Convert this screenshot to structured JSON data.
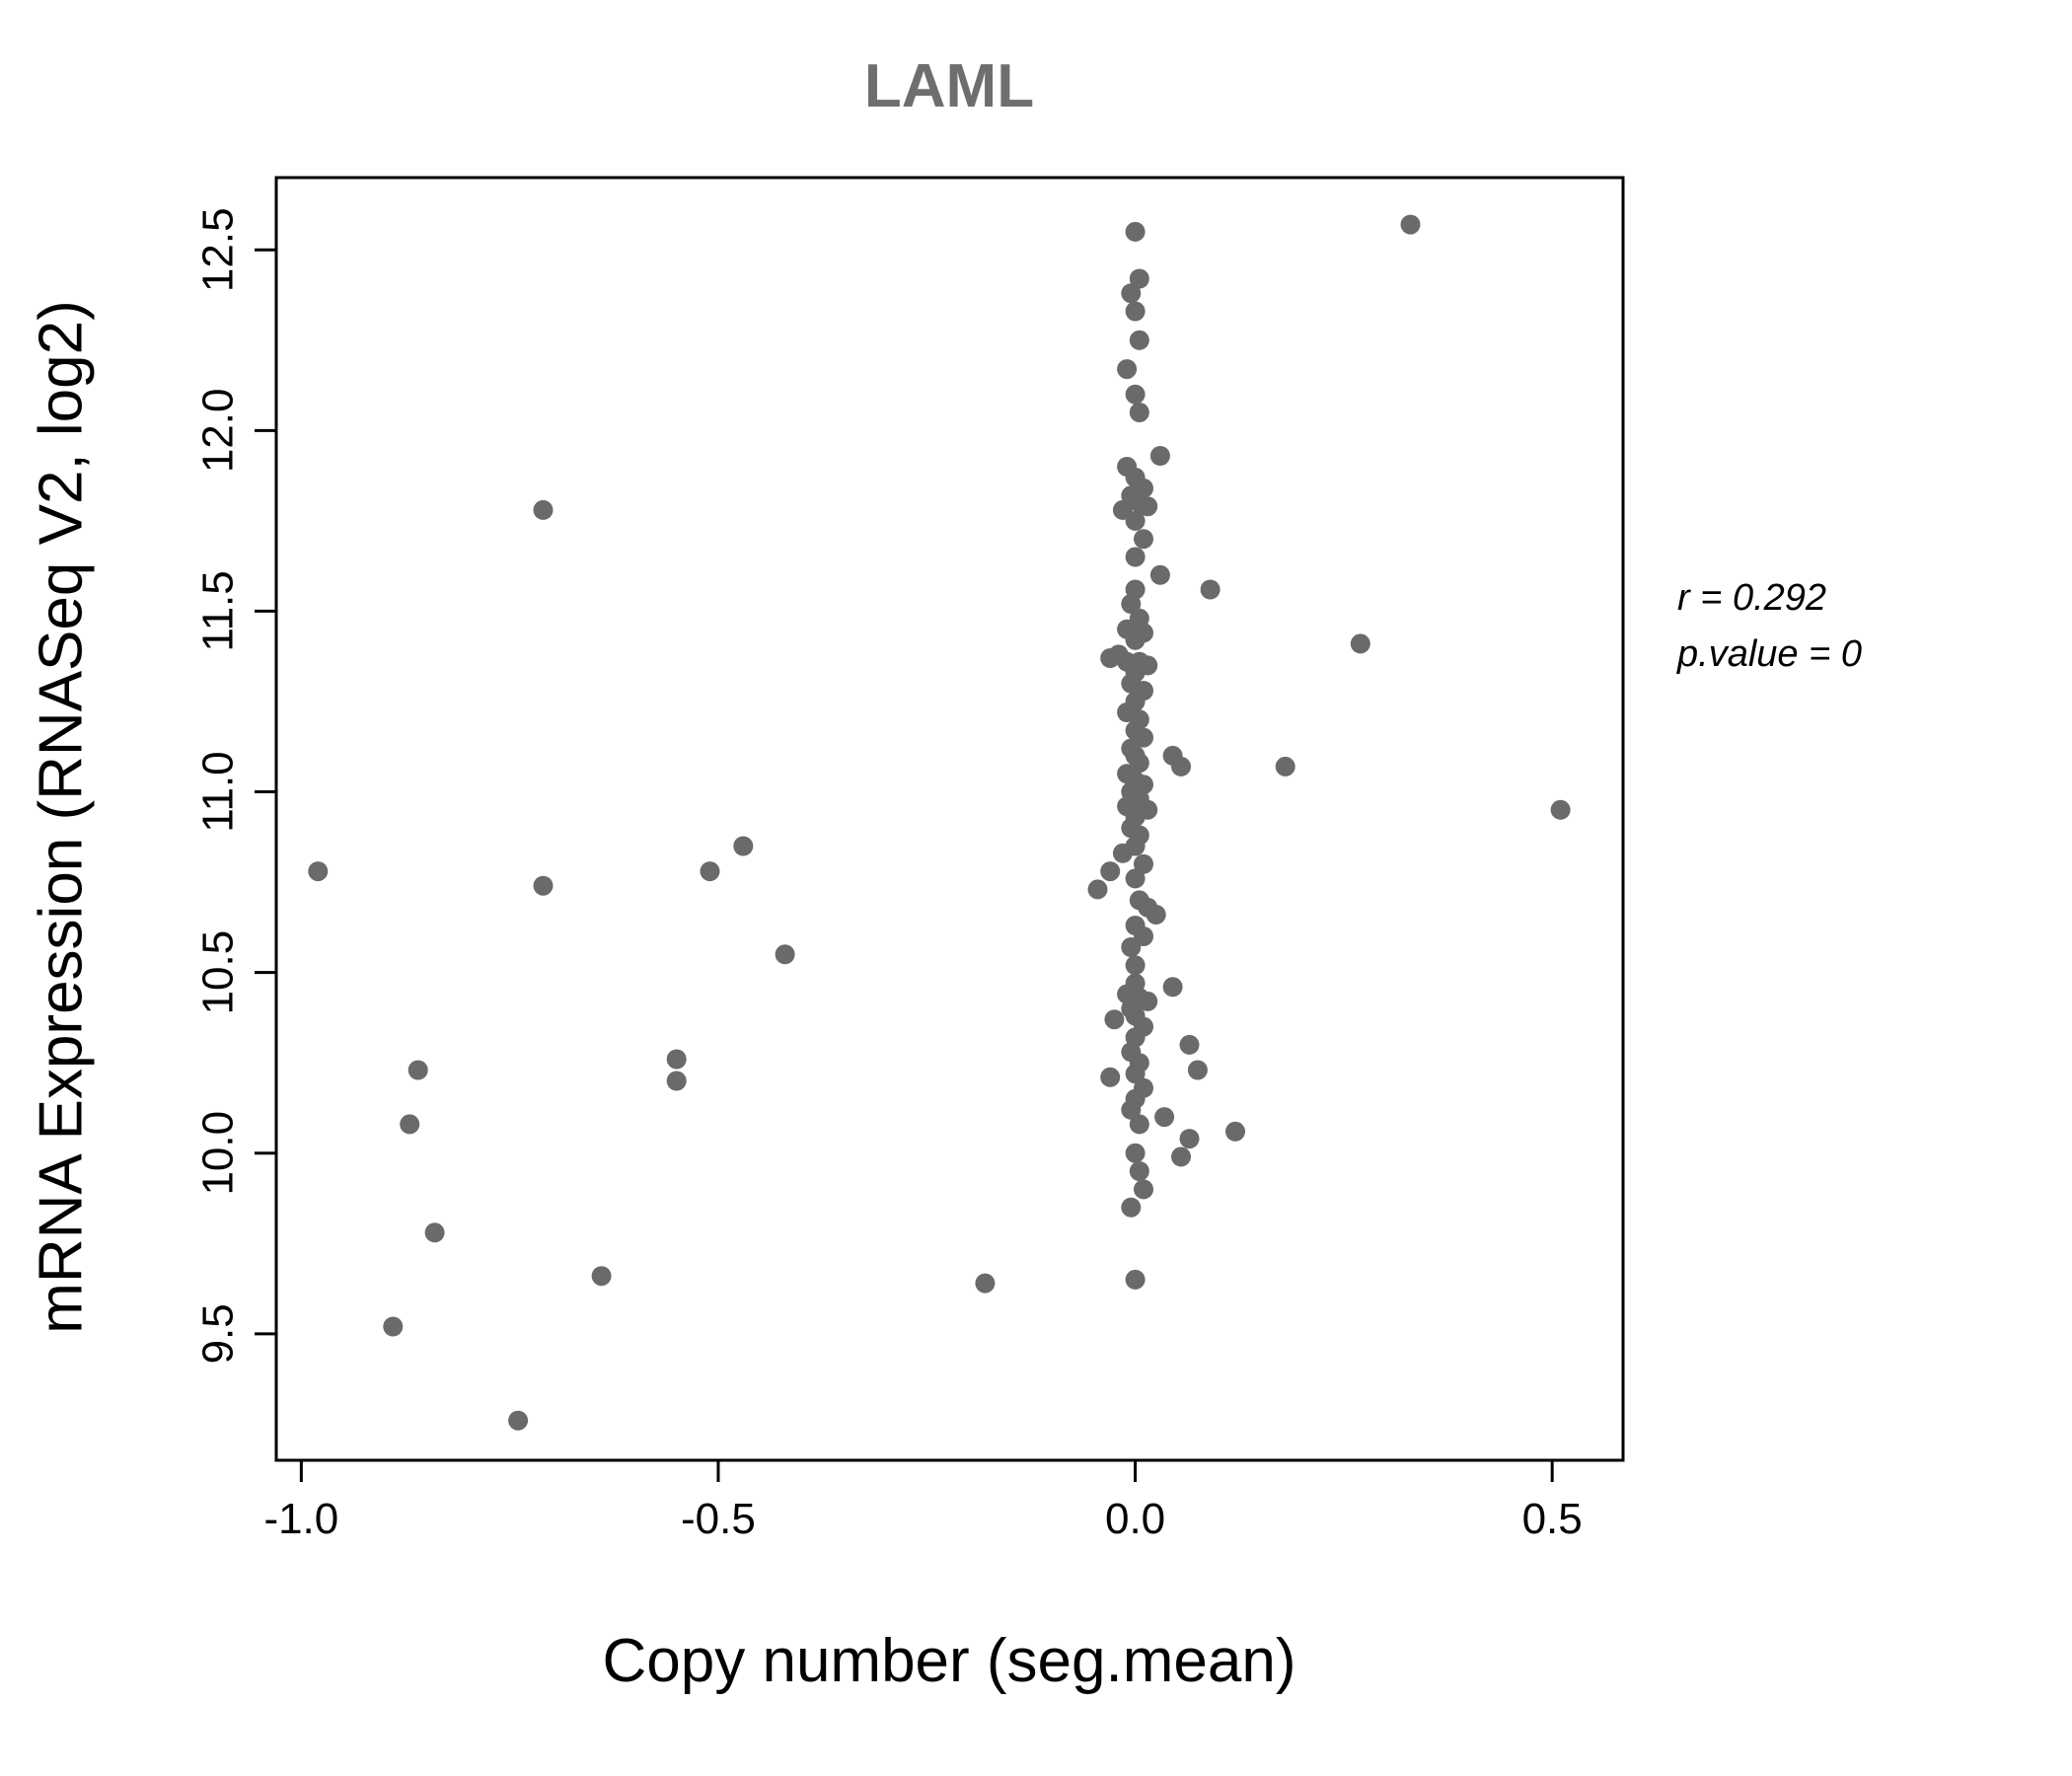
{
  "page": {
    "background": "#ffffff"
  },
  "chart_data": {
    "type": "scatter",
    "title": "LAML",
    "xlabel": "Copy number (seg.mean)",
    "ylabel": "mRNA Expression (RNASeq V2, log2)",
    "annotation": {
      "r_line": "r = 0.292",
      "p_line": "p.value = 0"
    },
    "xlim": [
      -1.03,
      0.585
    ],
    "ylim": [
      9.15,
      12.7
    ],
    "xticks": {
      "values": [
        -1.0,
        -0.5,
        0.0,
        0.5
      ],
      "labels": [
        "-1.0",
        "-0.5",
        "0.0",
        "0.5"
      ]
    },
    "yticks": {
      "values": [
        9.5,
        10.0,
        10.5,
        11.0,
        11.5,
        12.0,
        12.5
      ],
      "labels": [
        "9.5",
        "10.0",
        "10.5",
        "11.0",
        "11.5",
        "12.0",
        "12.5"
      ]
    },
    "grid": false,
    "legend": "none",
    "point_color": "#6a6a6a",
    "point_radius": 10,
    "axis_color": "#000000",
    "points": [
      [
        -0.98,
        10.78
      ],
      [
        -0.89,
        9.52
      ],
      [
        -0.87,
        10.08
      ],
      [
        -0.86,
        10.23
      ],
      [
        -0.84,
        9.78
      ],
      [
        -0.74,
        9.26
      ],
      [
        -0.71,
        11.78
      ],
      [
        -0.71,
        10.74
      ],
      [
        -0.64,
        9.66
      ],
      [
        -0.55,
        10.26
      ],
      [
        -0.55,
        10.2
      ],
      [
        -0.51,
        10.78
      ],
      [
        -0.47,
        10.85
      ],
      [
        -0.42,
        10.55
      ],
      [
        -0.18,
        9.64
      ],
      [
        0.33,
        12.57
      ],
      [
        0.27,
        11.41
      ],
      [
        0.18,
        11.07
      ],
      [
        0.51,
        10.95
      ],
      [
        0.09,
        11.56
      ],
      [
        0.12,
        10.06
      ],
      [
        0.065,
        10.04
      ],
      [
        0.075,
        10.23
      ],
      [
        0.065,
        10.3
      ],
      [
        0.055,
        9.99
      ],
      [
        0.045,
        10.46
      ],
      [
        0.055,
        11.07
      ],
      [
        0.045,
        11.1
      ],
      [
        0.035,
        10.1
      ],
      [
        0.03,
        11.93
      ],
      [
        0.03,
        11.6
      ],
      [
        0.0,
        12.55
      ],
      [
        0.005,
        12.42
      ],
      [
        -0.005,
        12.38
      ],
      [
        0.0,
        12.33
      ],
      [
        0.005,
        12.25
      ],
      [
        -0.01,
        12.17
      ],
      [
        0.0,
        12.1
      ],
      [
        0.005,
        12.05
      ],
      [
        -0.01,
        11.9
      ],
      [
        0.0,
        11.87
      ],
      [
        0.01,
        11.84
      ],
      [
        -0.005,
        11.82
      ],
      [
        0.005,
        11.8
      ],
      [
        0.015,
        11.79
      ],
      [
        -0.015,
        11.78
      ],
      [
        0.0,
        11.75
      ],
      [
        0.01,
        11.7
      ],
      [
        0.0,
        11.65
      ],
      [
        0.0,
        11.56
      ],
      [
        -0.005,
        11.52
      ],
      [
        0.005,
        11.48
      ],
      [
        -0.01,
        11.45
      ],
      [
        0.01,
        11.44
      ],
      [
        0.0,
        11.42
      ],
      [
        -0.02,
        11.38
      ],
      [
        -0.03,
        11.37
      ],
      [
        -0.01,
        11.36
      ],
      [
        0.005,
        11.36
      ],
      [
        0.015,
        11.35
      ],
      [
        0.0,
        11.33
      ],
      [
        -0.005,
        11.3
      ],
      [
        0.01,
        11.28
      ],
      [
        0.0,
        11.25
      ],
      [
        -0.01,
        11.22
      ],
      [
        0.005,
        11.2
      ],
      [
        0.0,
        11.17
      ],
      [
        0.01,
        11.15
      ],
      [
        -0.005,
        11.12
      ],
      [
        0.0,
        11.1
      ],
      [
        0.005,
        11.08
      ],
      [
        -0.01,
        11.05
      ],
      [
        0.0,
        11.03
      ],
      [
        0.01,
        11.02
      ],
      [
        -0.005,
        11.0
      ],
      [
        0.005,
        10.98
      ],
      [
        0.0,
        10.97
      ],
      [
        -0.01,
        10.96
      ],
      [
        0.015,
        10.95
      ],
      [
        0.0,
        10.93
      ],
      [
        -0.005,
        10.9
      ],
      [
        0.005,
        10.88
      ],
      [
        0.0,
        10.85
      ],
      [
        -0.015,
        10.83
      ],
      [
        0.01,
        10.8
      ],
      [
        -0.03,
        10.78
      ],
      [
        0.0,
        10.76
      ],
      [
        -0.045,
        10.73
      ],
      [
        0.005,
        10.7
      ],
      [
        0.015,
        10.68
      ],
      [
        0.025,
        10.66
      ],
      [
        0.0,
        10.63
      ],
      [
        0.01,
        10.6
      ],
      [
        -0.005,
        10.57
      ],
      [
        0.0,
        10.52
      ],
      [
        0.0,
        10.47
      ],
      [
        -0.01,
        10.44
      ],
      [
        0.005,
        10.43
      ],
      [
        0.015,
        10.42
      ],
      [
        -0.005,
        10.4
      ],
      [
        0.0,
        10.38
      ],
      [
        -0.025,
        10.37
      ],
      [
        0.01,
        10.35
      ],
      [
        0.0,
        10.32
      ],
      [
        -0.005,
        10.28
      ],
      [
        0.005,
        10.25
      ],
      [
        0.0,
        10.22
      ],
      [
        -0.03,
        10.21
      ],
      [
        0.01,
        10.18
      ],
      [
        0.0,
        10.15
      ],
      [
        -0.005,
        10.12
      ],
      [
        0.005,
        10.08
      ],
      [
        0.0,
        10.0
      ],
      [
        0.005,
        9.95
      ],
      [
        0.01,
        9.9
      ],
      [
        -0.005,
        9.85
      ],
      [
        0.0,
        9.65
      ]
    ]
  }
}
